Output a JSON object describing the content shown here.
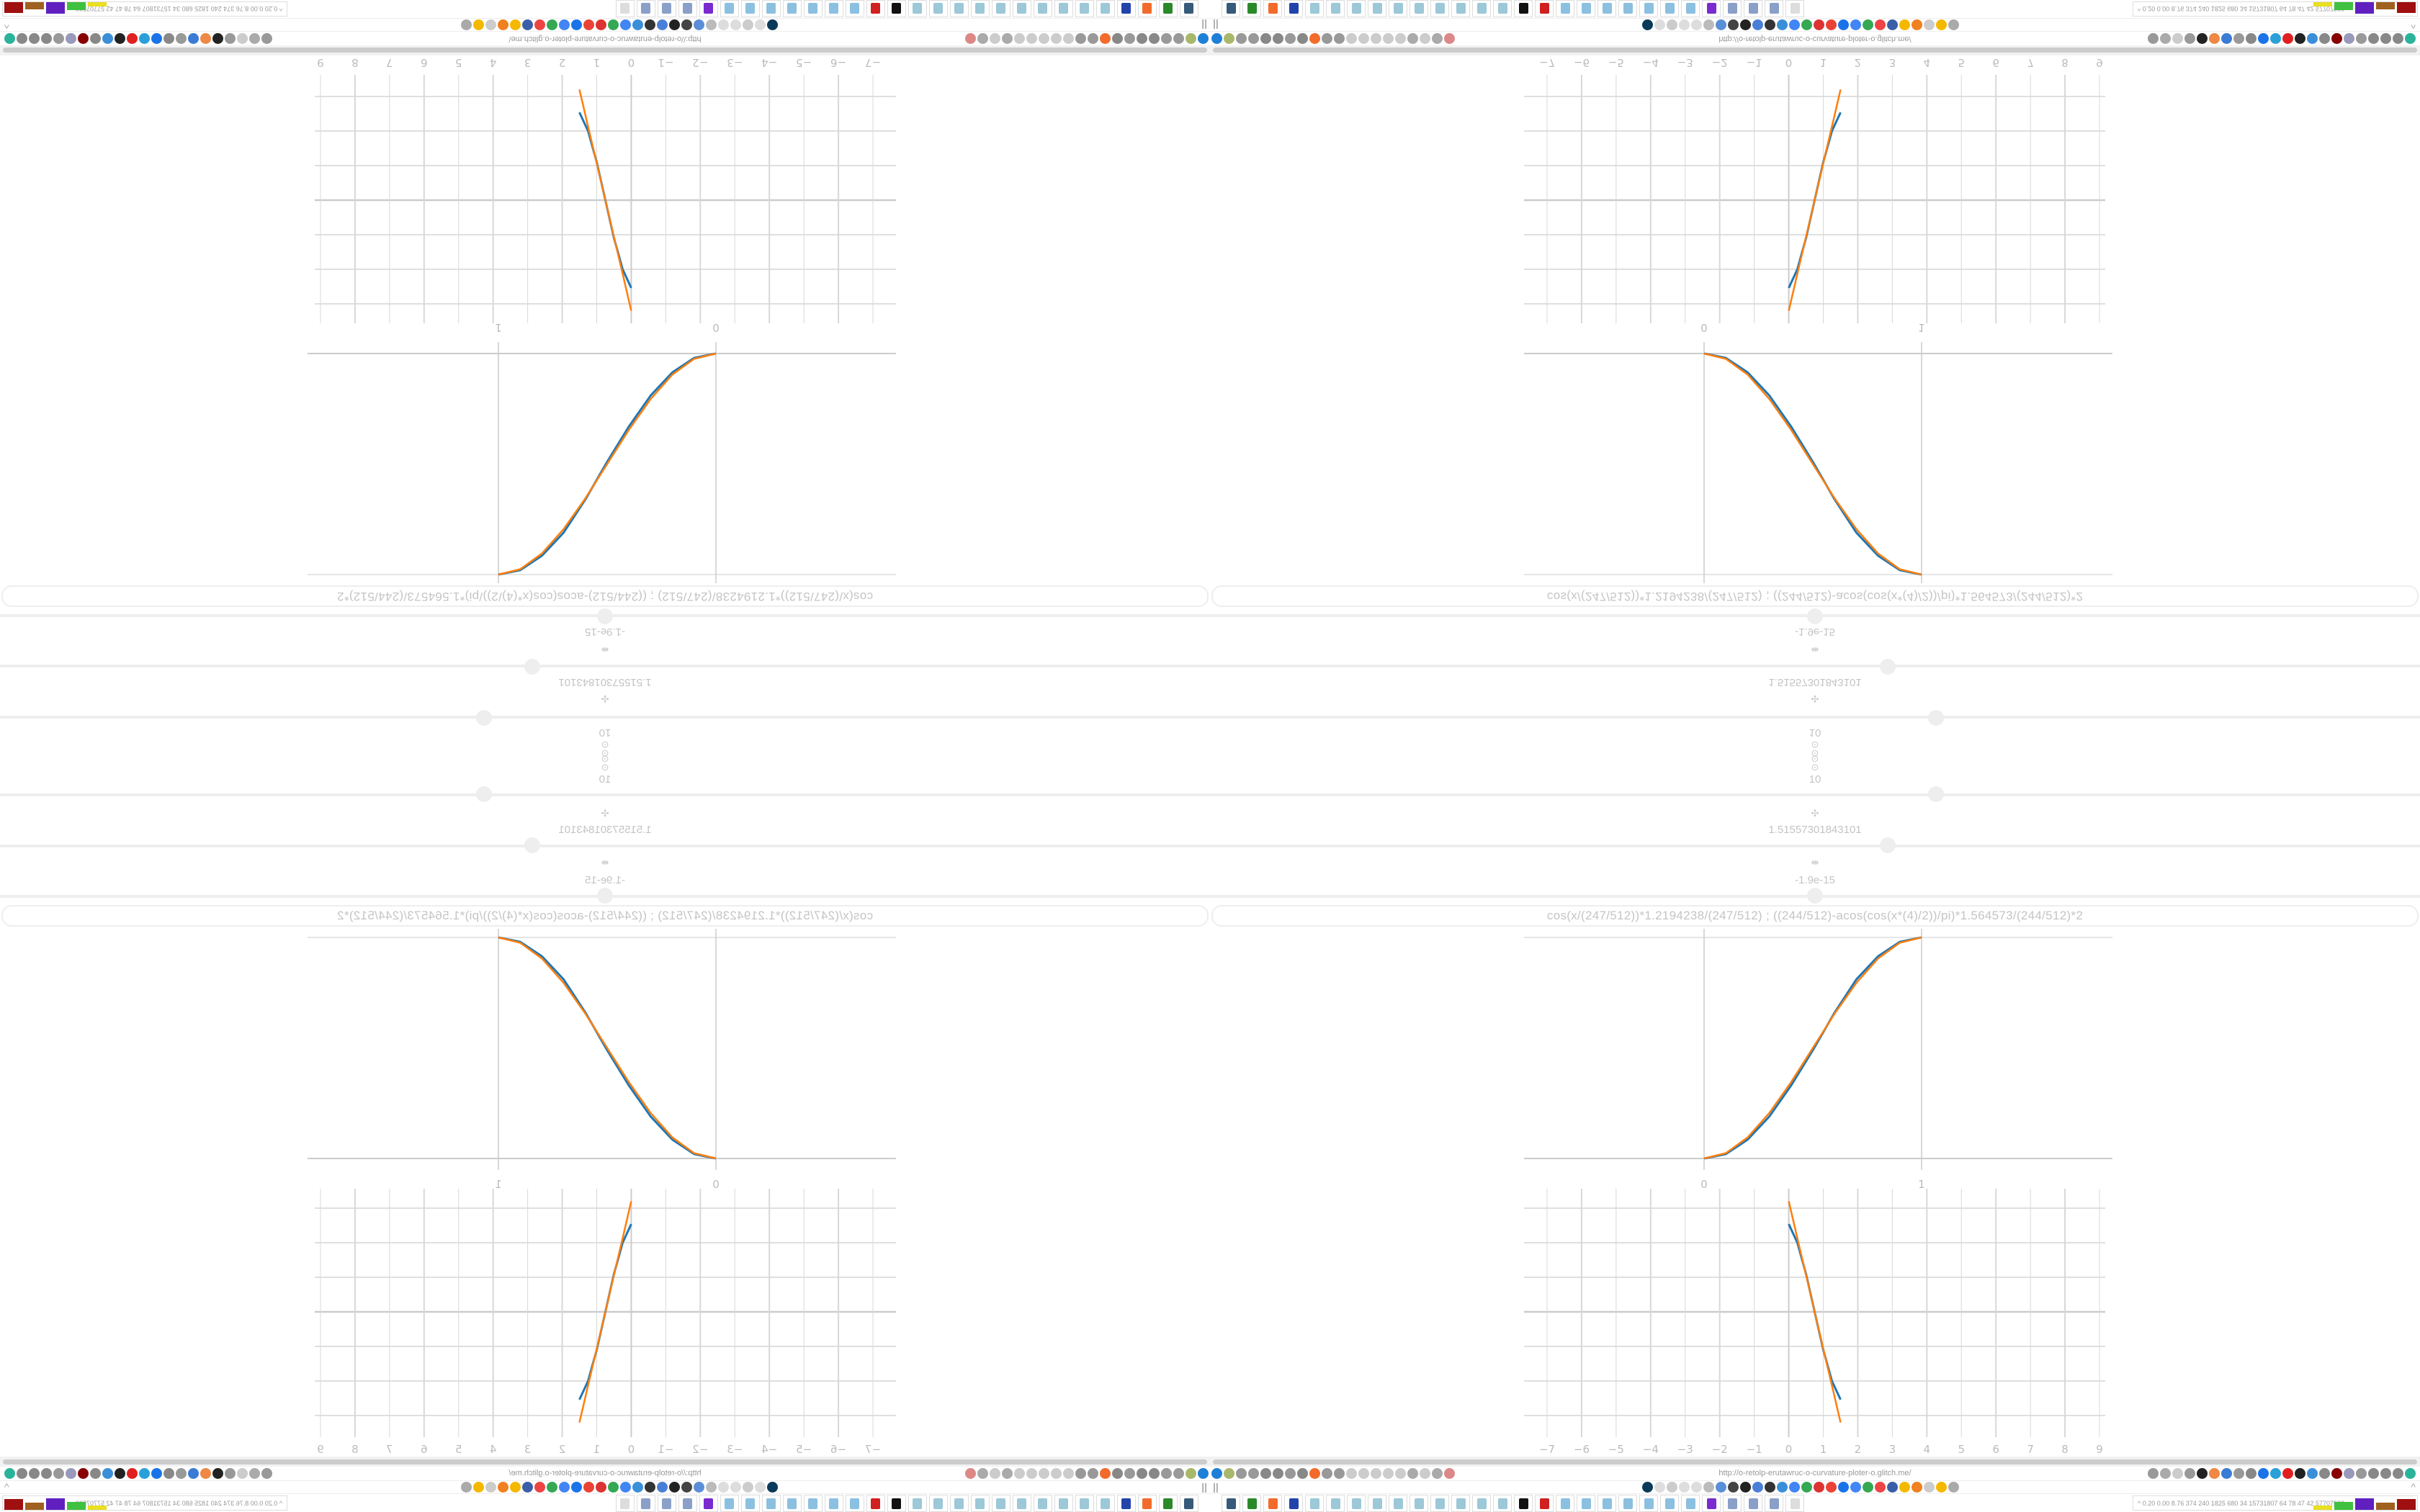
{
  "controls": {
    "top_icons": [
      "⊙",
      "⊙"
    ],
    "steps_value": "10",
    "param1_icon": "✣",
    "param1_value": "1.51557301843101",
    "param2_icon": "⇼",
    "param2_value": "-1.9e-15",
    "slider1_level": 0.6,
    "slider2_level": 0.56,
    "slider3_level": 0.5
  },
  "formula": "cos(x/(247/512))*1.2194238/(247/512)   ;   ((244/512)-acos(cos(x*(4)/2))/pi)*1.564573/(244/512)*2",
  "browser": {
    "url": "http://o-retolp-erutawruc-o-curvature-ploter-o.glitch.me/",
    "left_icons": [
      {
        "name": "filter-icon",
        "color": "#1e7fd6"
      },
      {
        "name": "extension-icon",
        "color": "#a8b86a"
      },
      {
        "name": "globe-icon",
        "color": "#999"
      },
      {
        "name": "globe-icon",
        "color": "#999"
      },
      {
        "name": "headphones-icon",
        "color": "#888"
      },
      {
        "name": "headphones-icon",
        "color": "#888"
      },
      {
        "name": "globe-icon",
        "color": "#999"
      },
      {
        "name": "wrench-icon",
        "color": "#888"
      },
      {
        "name": "firefox-icon",
        "color": "#f36b2a"
      },
      {
        "name": "gear-icon",
        "color": "#999"
      },
      {
        "name": "globe-icon",
        "color": "#999"
      },
      {
        "name": "dot-icon",
        "color": "#ccc"
      },
      {
        "name": "circle-icon",
        "color": "#ccc"
      },
      {
        "name": "dot-icon",
        "color": "#ccc"
      },
      {
        "name": "circle-icon",
        "color": "#ccc"
      },
      {
        "name": "dot-icon",
        "color": "#ccc"
      },
      {
        "name": "folder-icon",
        "color": "#aaa"
      },
      {
        "name": "back-arrow-icon",
        "color": "#ccc"
      },
      {
        "name": "shield-icon",
        "color": "#aaa"
      },
      {
        "name": "lock-icon",
        "color": "#d88"
      }
    ],
    "right_icons": [
      {
        "name": "translate-icon",
        "color": "#999"
      },
      {
        "name": "star-icon",
        "color": "#aaa"
      },
      {
        "name": "forward-arrow-icon",
        "color": "#ccc"
      },
      {
        "name": "reload-icon",
        "color": "#999"
      },
      {
        "name": "download-icon",
        "color": "#222"
      },
      {
        "name": "color-picker-icon",
        "color": "#e84"
      },
      {
        "name": "translate-icon",
        "color": "#3a7bd5"
      },
      {
        "name": "mouse-icon",
        "color": "#999"
      },
      {
        "name": "gear-icon",
        "color": "#888"
      },
      {
        "name": "plus-icon",
        "color": "#1a73e8"
      },
      {
        "name": "upload-icon",
        "color": "#2aa0d8"
      },
      {
        "name": "record-icon",
        "color": "#e02020"
      },
      {
        "name": "trash-icon",
        "color": "#222"
      },
      {
        "name": "share-icon",
        "color": "#3a8fd8"
      },
      {
        "name": "battery-icon",
        "color": "#888"
      },
      {
        "name": "ublock-icon",
        "color": "#800"
      },
      {
        "name": "shield-icon",
        "color": "#99b"
      },
      {
        "name": "globe-icon",
        "color": "#999"
      },
      {
        "name": "puzzle-icon",
        "color": "#888"
      },
      {
        "name": "wrench-icon",
        "color": "#888"
      },
      {
        "name": "gear-icon",
        "color": "#888"
      },
      {
        "name": "status-dot-icon",
        "color": "#2bb39a"
      }
    ],
    "bookmark_icons": [
      {
        "name": "bookmark-icon",
        "color": "#0a3a5a"
      },
      {
        "name": "bookmark-icon",
        "color": "#ddd"
      },
      {
        "name": "cc-icon",
        "color": "#ccc"
      },
      {
        "name": "bookmark-icon",
        "color": "#ddd"
      },
      {
        "name": "bookmark-icon",
        "color": "#ddd"
      },
      {
        "name": "bookmark-icon",
        "color": "#bbb"
      },
      {
        "name": "bookmark-icon",
        "color": "#5a8fd8"
      },
      {
        "name": "wikipedia-icon",
        "color": "#444"
      },
      {
        "name": "bookmark-icon",
        "color": "#222"
      },
      {
        "name": "bookmark-icon",
        "color": "#4a7fd8"
      },
      {
        "name": "bookmark-icon",
        "color": "#333"
      },
      {
        "name": "bookmark-icon",
        "color": "#3a8fd8"
      },
      {
        "name": "google-icon",
        "color": "#4285f4"
      },
      {
        "name": "google-icon",
        "color": "#34a853"
      },
      {
        "name": "bookmark-icon",
        "color": "#d33"
      },
      {
        "name": "google-icon",
        "color": "#ea4335"
      },
      {
        "name": "bookmark-icon",
        "color": "#1a73e8"
      },
      {
        "name": "google-icon",
        "color": "#4285f4"
      },
      {
        "name": "google-icon",
        "color": "#34a853"
      },
      {
        "name": "bookmark-icon",
        "color": "#e44"
      },
      {
        "name": "bookmark-icon",
        "color": "#3a5fa8"
      },
      {
        "name": "bookmark-icon",
        "color": "#f5b800"
      },
      {
        "name": "bookmark-icon",
        "color": "#f08020"
      },
      {
        "name": "cc-icon",
        "color": "#ccc"
      },
      {
        "name": "bookmark-icon",
        "color": "#f5b800"
      },
      {
        "name": "hourglass-icon",
        "color": "#aaa"
      }
    ],
    "pause_label": "||",
    "collapse_label": "^"
  },
  "taskbar": {
    "apps": [
      {
        "name": "taskbar-system-settings",
        "color": "#355a7a"
      },
      {
        "name": "taskbar-terminal",
        "color": "#2a8a2a"
      },
      {
        "name": "taskbar-firefox",
        "color": "#f36b2a"
      },
      {
        "name": "taskbar-floppy-64",
        "color": "#2244aa"
      },
      {
        "name": "taskbar-notepad",
        "color": "#9cc8d8"
      },
      {
        "name": "taskbar-notepad",
        "color": "#9cc8d8"
      },
      {
        "name": "taskbar-notepad",
        "color": "#9cc8d8"
      },
      {
        "name": "taskbar-notepad",
        "color": "#9cc8d8"
      },
      {
        "name": "taskbar-notepad",
        "color": "#9cc8d8"
      },
      {
        "name": "taskbar-notepad",
        "color": "#9cc8d8"
      },
      {
        "name": "taskbar-notepad",
        "color": "#9cc8d8"
      },
      {
        "name": "taskbar-notepad",
        "color": "#9cc8d8"
      },
      {
        "name": "taskbar-notepad",
        "color": "#9cc8d8"
      },
      {
        "name": "taskbar-notepad",
        "color": "#9cc8d8"
      },
      {
        "name": "taskbar-inkscape",
        "color": "#111"
      },
      {
        "name": "taskbar-app-red",
        "color": "#d02020"
      },
      {
        "name": "taskbar-calculator",
        "color": "#8cc0e0"
      },
      {
        "name": "taskbar-calculator",
        "color": "#8cc0e0"
      },
      {
        "name": "taskbar-calculator",
        "color": "#8cc0e0"
      },
      {
        "name": "taskbar-calculator",
        "color": "#8cc0e0"
      },
      {
        "name": "taskbar-calculator",
        "color": "#8cc0e0"
      },
      {
        "name": "taskbar-calculator",
        "color": "#8cc0e0"
      },
      {
        "name": "taskbar-calculator",
        "color": "#8cc0e0"
      },
      {
        "name": "taskbar-app-purple",
        "color": "#7a2ad0"
      },
      {
        "name": "taskbar-document",
        "color": "#8aa0c8"
      },
      {
        "name": "taskbar-document",
        "color": "#8aa0c8"
      },
      {
        "name": "taskbar-document",
        "color": "#8aa0c8"
      },
      {
        "name": "taskbar-app-gray",
        "color": "#ddd"
      }
    ],
    "perf_text": "^  0.20 0.00 8.76 374  240 1825 680  34  15731807 64  78  47  42 57707598",
    "perf_colors": [
      "#e8e020",
      "#40c040",
      "#6020c0",
      "#a06020",
      "#a01010"
    ]
  },
  "chart_data": [
    {
      "type": "line",
      "grid": true,
      "xlim": [
        -1.6,
        2.8
      ],
      "ylim": [
        0,
        1
      ],
      "x_ticks": [
        "0",
        "1"
      ],
      "x": [
        0,
        0.1,
        0.2,
        0.3,
        0.4,
        0.5,
        0.6,
        0.7,
        0.8,
        0.9,
        1
      ],
      "series": [
        {
          "color": "#1f77b4",
          "values": [
            0,
            0.02,
            0.085,
            0.19,
            0.33,
            0.49,
            0.66,
            0.81,
            0.915,
            0.98,
            1
          ]
        },
        {
          "color": "#ff7f0e",
          "values": [
            0,
            0.024,
            0.095,
            0.206,
            0.345,
            0.5,
            0.655,
            0.794,
            0.905,
            0.976,
            1
          ]
        }
      ]
    },
    {
      "type": "line",
      "grid": true,
      "xlim": [
        -7,
        9
      ],
      "ylim": [
        -3,
        3
      ],
      "x_ticks": [
        "−7",
        "−6",
        "−5",
        "−4",
        "−3",
        "−2",
        "−1",
        "0",
        "1",
        "2",
        "3",
        "4",
        "5",
        "6",
        "7",
        "8",
        "9"
      ],
      "x": [
        0,
        0.25,
        0.5,
        0.75,
        1,
        1.25,
        1.5
      ],
      "series": [
        {
          "color": "#1f77b4",
          "values": [
            2.54,
            2.0,
            1.1,
            0,
            -1.1,
            -2.0,
            -2.54
          ]
        },
        {
          "color": "#ff7f0e",
          "values": [
            3.2,
            2.13,
            1.07,
            0,
            -1.07,
            -2.13,
            -3.2
          ]
        }
      ]
    }
  ]
}
